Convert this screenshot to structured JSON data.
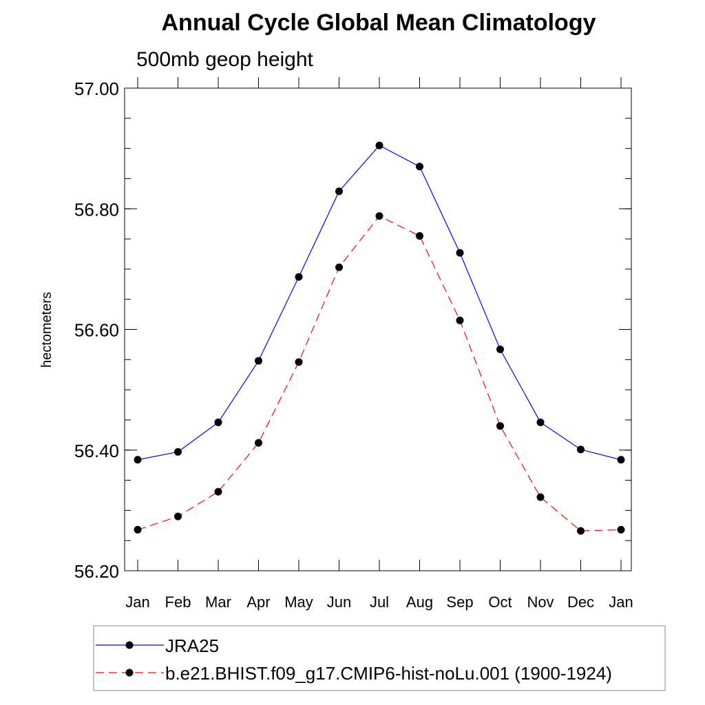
{
  "chart_data": {
    "type": "line",
    "title": "Annual Cycle Global Mean Climatology",
    "subtitle": "500mb geop height",
    "ylabel": "hectometers",
    "xlabel": "",
    "categories": [
      "Jan",
      "Feb",
      "Mar",
      "Apr",
      "May",
      "Jun",
      "Jul",
      "Aug",
      "Sep",
      "Oct",
      "Nov",
      "Dec",
      "Jan"
    ],
    "ylim": [
      56.2,
      57.0
    ],
    "yticks": [
      "56.20",
      "56.40",
      "56.60",
      "56.80",
      "57.00"
    ],
    "grid": false,
    "legend_position": "bottom",
    "series": [
      {
        "name": "JRA25",
        "color": "#0000ff",
        "dash": "solid",
        "marker": "circle",
        "values": [
          56.384,
          56.397,
          56.446,
          56.548,
          56.687,
          56.829,
          56.905,
          56.87,
          56.727,
          56.567,
          56.446,
          56.401,
          56.384
        ]
      },
      {
        "name": "b.e21.BHIST.f09_g17.CMIP6-hist-noLu.001 (1900-1924)",
        "color": "#ff0000",
        "dash": "dashed",
        "marker": "circle",
        "values": [
          56.268,
          56.29,
          56.331,
          56.412,
          56.546,
          56.703,
          56.788,
          56.755,
          56.615,
          56.44,
          56.322,
          56.266,
          56.268
        ]
      }
    ]
  }
}
